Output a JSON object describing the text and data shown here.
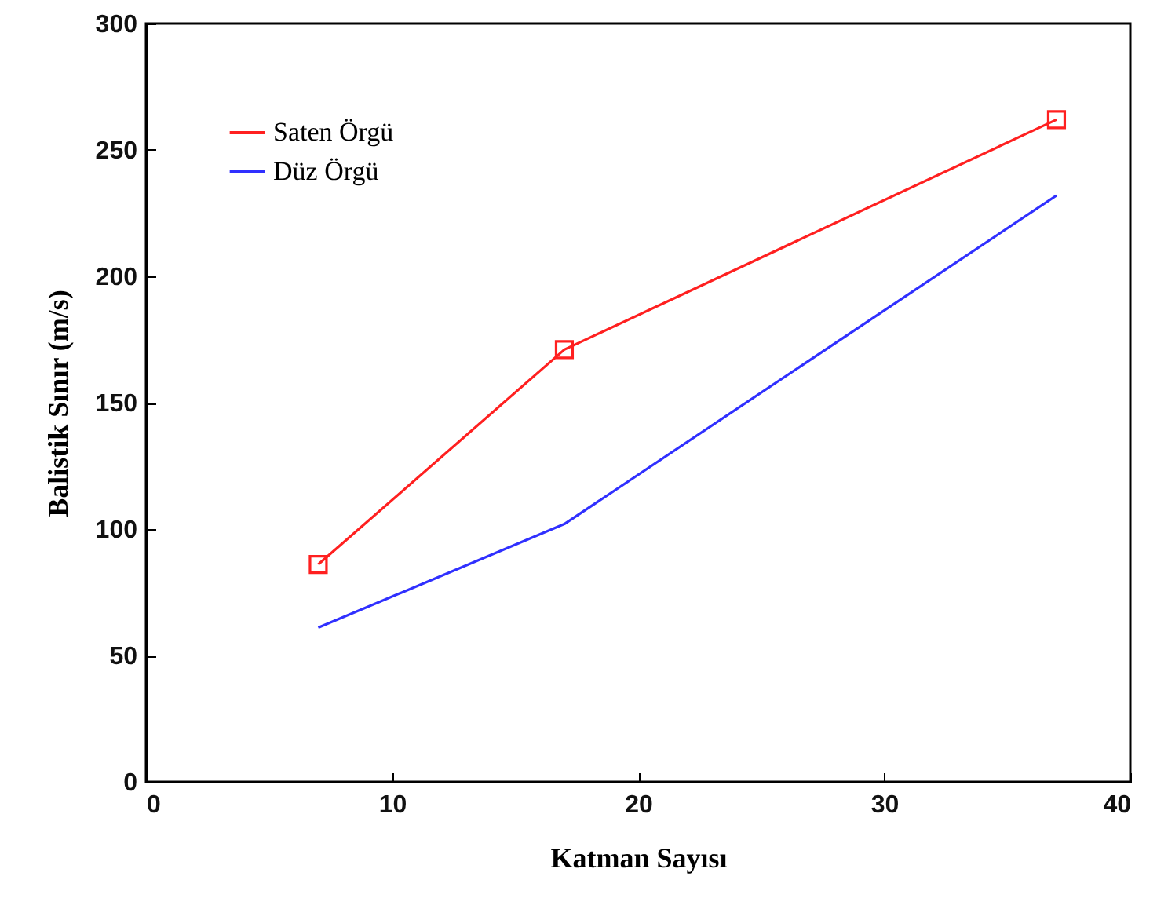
{
  "chart_data": {
    "type": "line",
    "xlabel": "Katman Sayısı",
    "ylabel": "Balistik Sınır (m/s)",
    "x": [
      7,
      17,
      37
    ],
    "series": [
      {
        "name": "Saten Örgü",
        "color": "#ff2020",
        "values": [
          86,
          171,
          262
        ],
        "marker": "square"
      },
      {
        "name": "Düz Örgü",
        "color": "#3030ff",
        "values": [
          61,
          102,
          232
        ],
        "marker": "none"
      }
    ],
    "xlim": [
      0,
      40
    ],
    "xticks": [
      0,
      10,
      20,
      30,
      40
    ],
    "ylim": [
      0,
      300
    ],
    "yticks": [
      0,
      50,
      100,
      150,
      200,
      250,
      300
    ],
    "legend": "top left",
    "grid": false
  }
}
